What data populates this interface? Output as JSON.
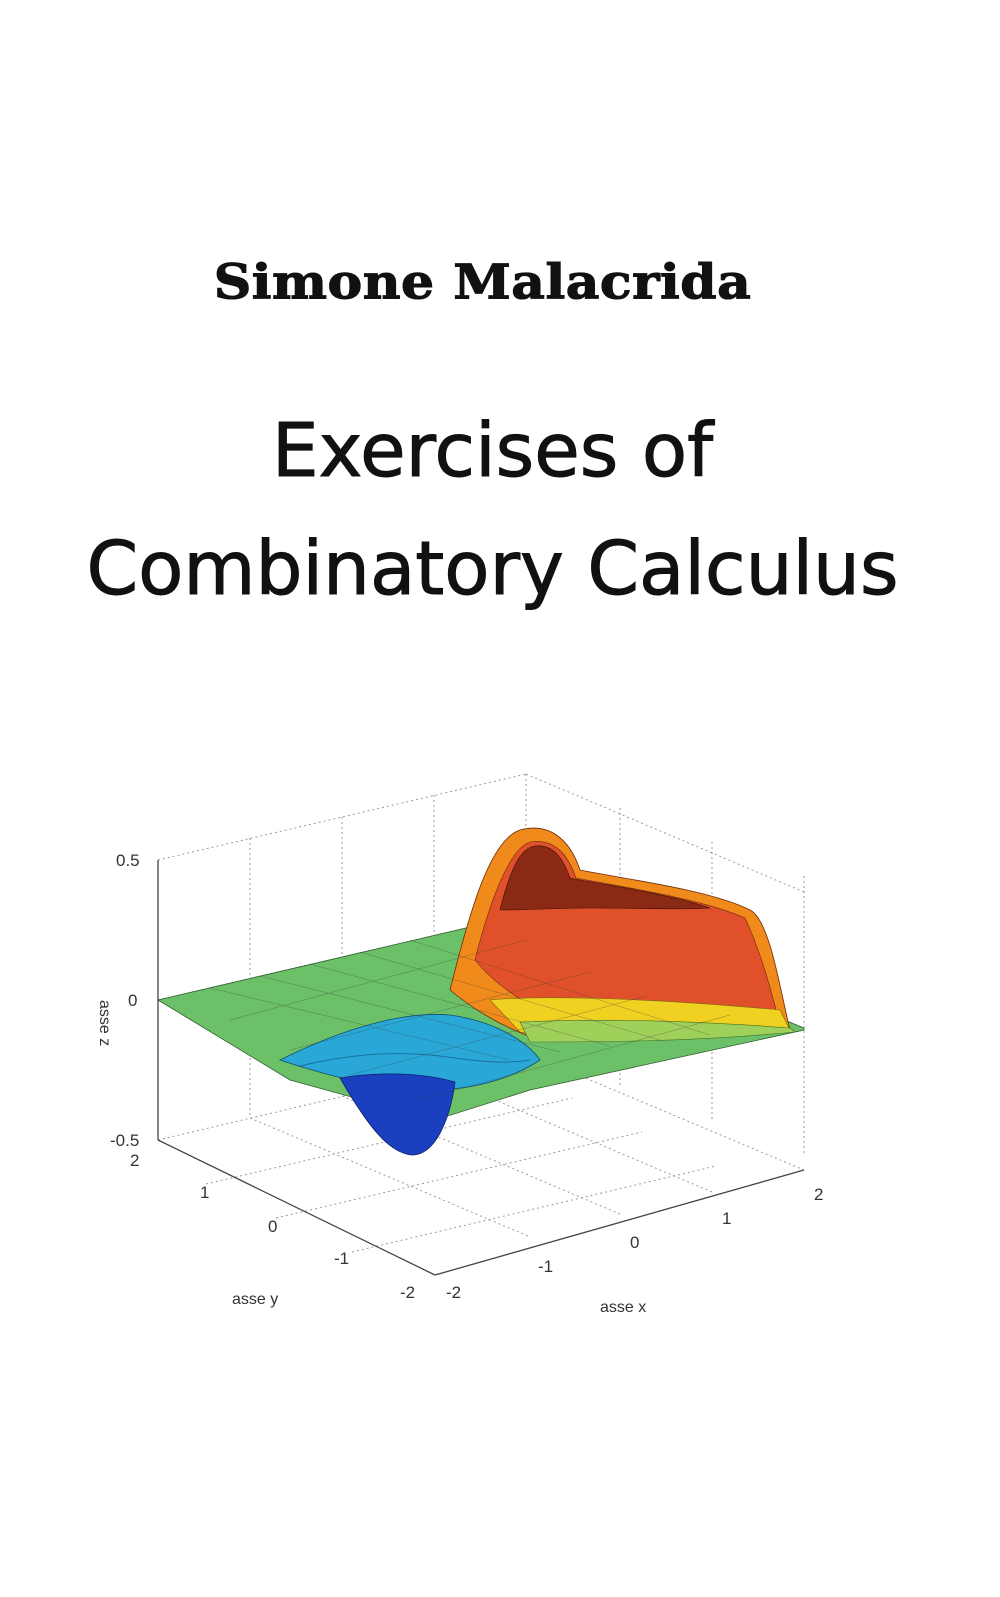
{
  "cover": {
    "author": "Simone Malacrida",
    "title_line_1": "Exercises of",
    "title_line_2": "Combinatory Calculus"
  },
  "figure": {
    "surface_icon": "3d-surface-plot",
    "z_axis": {
      "label": "asse z",
      "ticks": [
        "0.5",
        "0",
        "-0.5"
      ],
      "range": [
        -0.5,
        0.5
      ]
    },
    "y_axis": {
      "label": "asse y",
      "ticks": [
        "2",
        "1",
        "0",
        "-1",
        "-2"
      ],
      "range": [
        -2,
        2
      ]
    },
    "x_axis": {
      "label": "asse x",
      "ticks": [
        "-2",
        "-1",
        "0",
        "1",
        "2"
      ],
      "range": [
        -2,
        2
      ]
    },
    "colors": {
      "low": "#1a3fbf",
      "mid_low": "#29a8d8",
      "zero": "#6cc068",
      "mid_high": "#f0d020",
      "high": "#8a2a14"
    }
  }
}
